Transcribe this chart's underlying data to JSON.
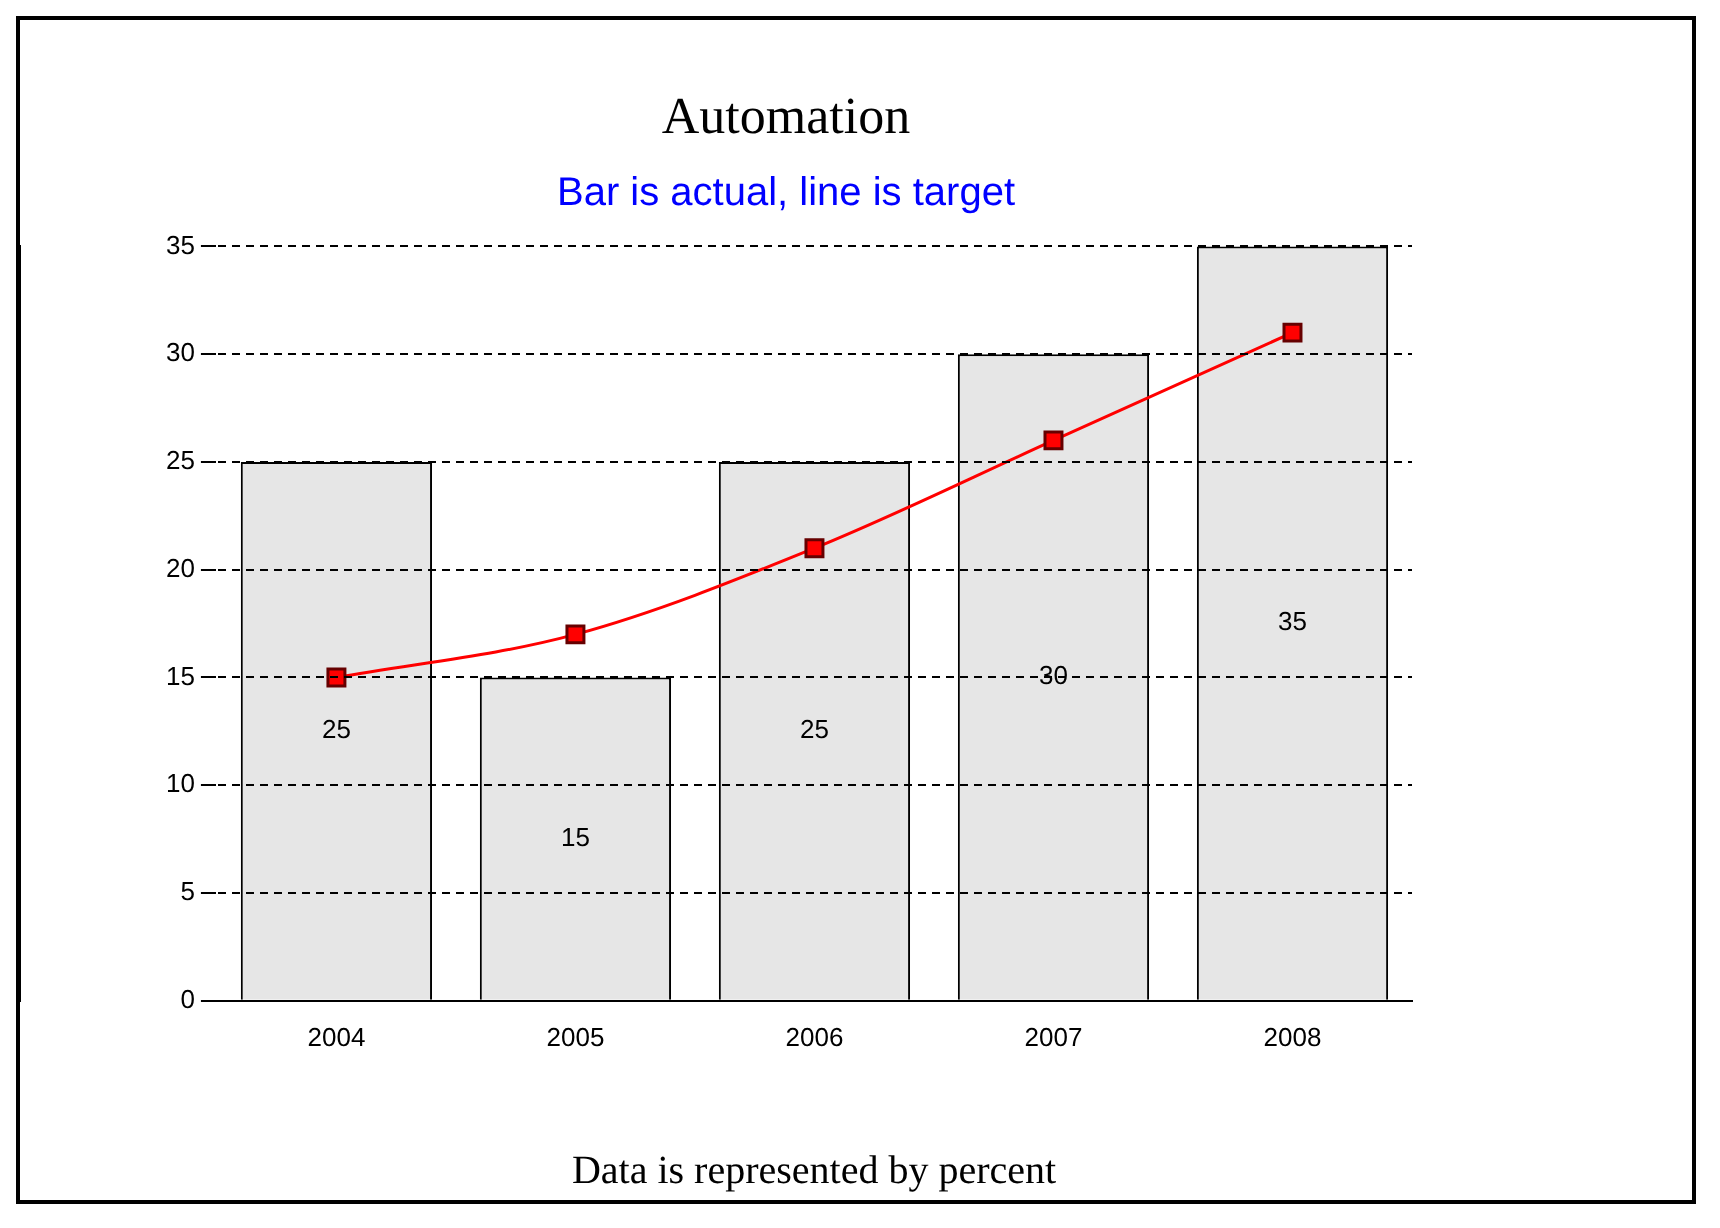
{
  "chart_data": {
    "type": "bar",
    "title": "Automation",
    "subtitle": "Bar is actual, line is target",
    "categories": [
      "2004",
      "2005",
      "2006",
      "2007",
      "2008"
    ],
    "series": [
      {
        "color": "#e6e6e6",
        "values": [
          25,
          15,
          25,
          30,
          35
        ],
        "value_labels": [
          "25",
          "15",
          "25",
          "30",
          "35"
        ]
      },
      {
        "type": "line",
        "color": "#ff0000",
        "values": [
          15,
          17,
          21,
          26,
          31
        ],
        "marker": "square"
      }
    ],
    "ylim": [
      0,
      35
    ],
    "yticks": [
      0,
      5,
      10,
      15,
      20,
      25,
      30,
      35
    ],
    "grid": "y",
    "legend": false,
    "annotations": [
      "Data is represented by percent"
    ]
  }
}
